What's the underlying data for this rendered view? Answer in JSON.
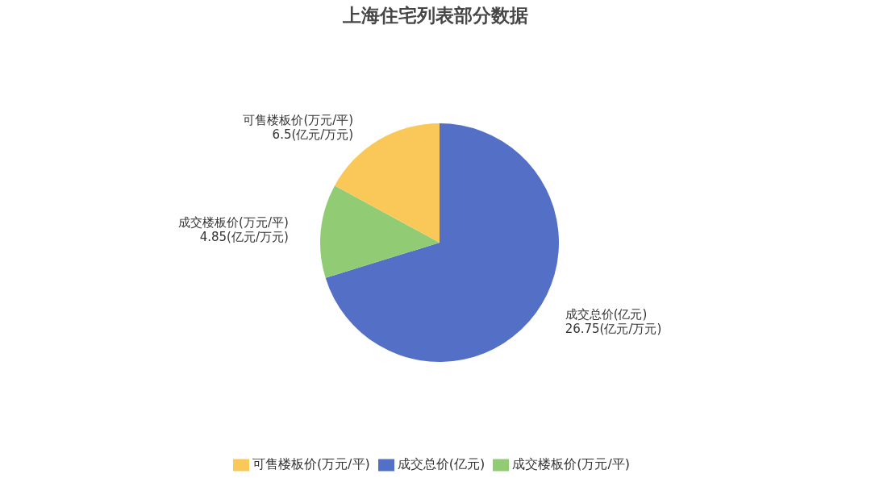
{
  "chart_data": {
    "type": "pie",
    "title": "上海住宅列表部分数据",
    "categories": [
      "成交总价(亿元)",
      "成交楼板价(万元/平)",
      "可售楼板价(万元/平)"
    ],
    "values": [
      26.75,
      4.85,
      6.5
    ],
    "value_labels": [
      "26.75(亿元/万元)",
      "4.85(亿元/万元)",
      "6.5(亿元/万元)"
    ],
    "colors": [
      "#5470c6",
      "#91cc75",
      "#fac858"
    ],
    "legend": "bottom"
  }
}
